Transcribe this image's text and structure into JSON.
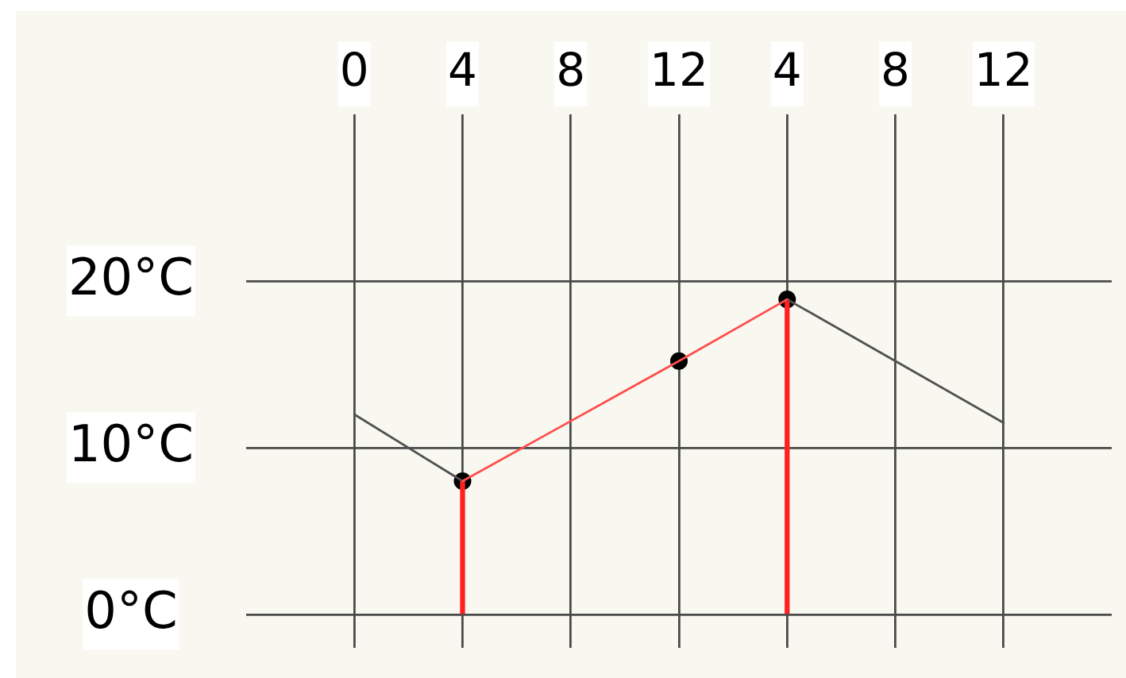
{
  "chart_data": {
    "type": "line",
    "categories": [
      "0",
      "4",
      "8",
      "12",
      "4",
      "8",
      "12"
    ],
    "ylim": [
      -2,
      30
    ],
    "yticks": [
      {
        "value": 0,
        "label": "0°C"
      },
      {
        "value": 10,
        "label": "10°C"
      },
      {
        "value": 20,
        "label": "20°C"
      }
    ],
    "grid": true,
    "legend": false,
    "marker": "none",
    "series": [
      {
        "type": "scatter",
        "color": "#000000",
        "marker": "circle",
        "values": [
          null,
          8,
          null,
          15.2,
          18.9,
          null,
          null
        ]
      },
      {
        "type": "bar",
        "color": "#ff2020",
        "values": [
          null,
          8,
          null,
          null,
          18.9,
          null,
          null
        ]
      },
      {
        "color": "#505050",
        "values": [
          12,
          8,
          null,
          null,
          null,
          null,
          null
        ]
      },
      {
        "color": "#505050",
        "values": [
          null,
          null,
          null,
          null,
          18.9,
          15.2,
          11.5
        ]
      },
      {
        "color": "#ff4d4d",
        "values": [
          null,
          8,
          11.6,
          15.2,
          18.9,
          null,
          null
        ]
      }
    ]
  }
}
